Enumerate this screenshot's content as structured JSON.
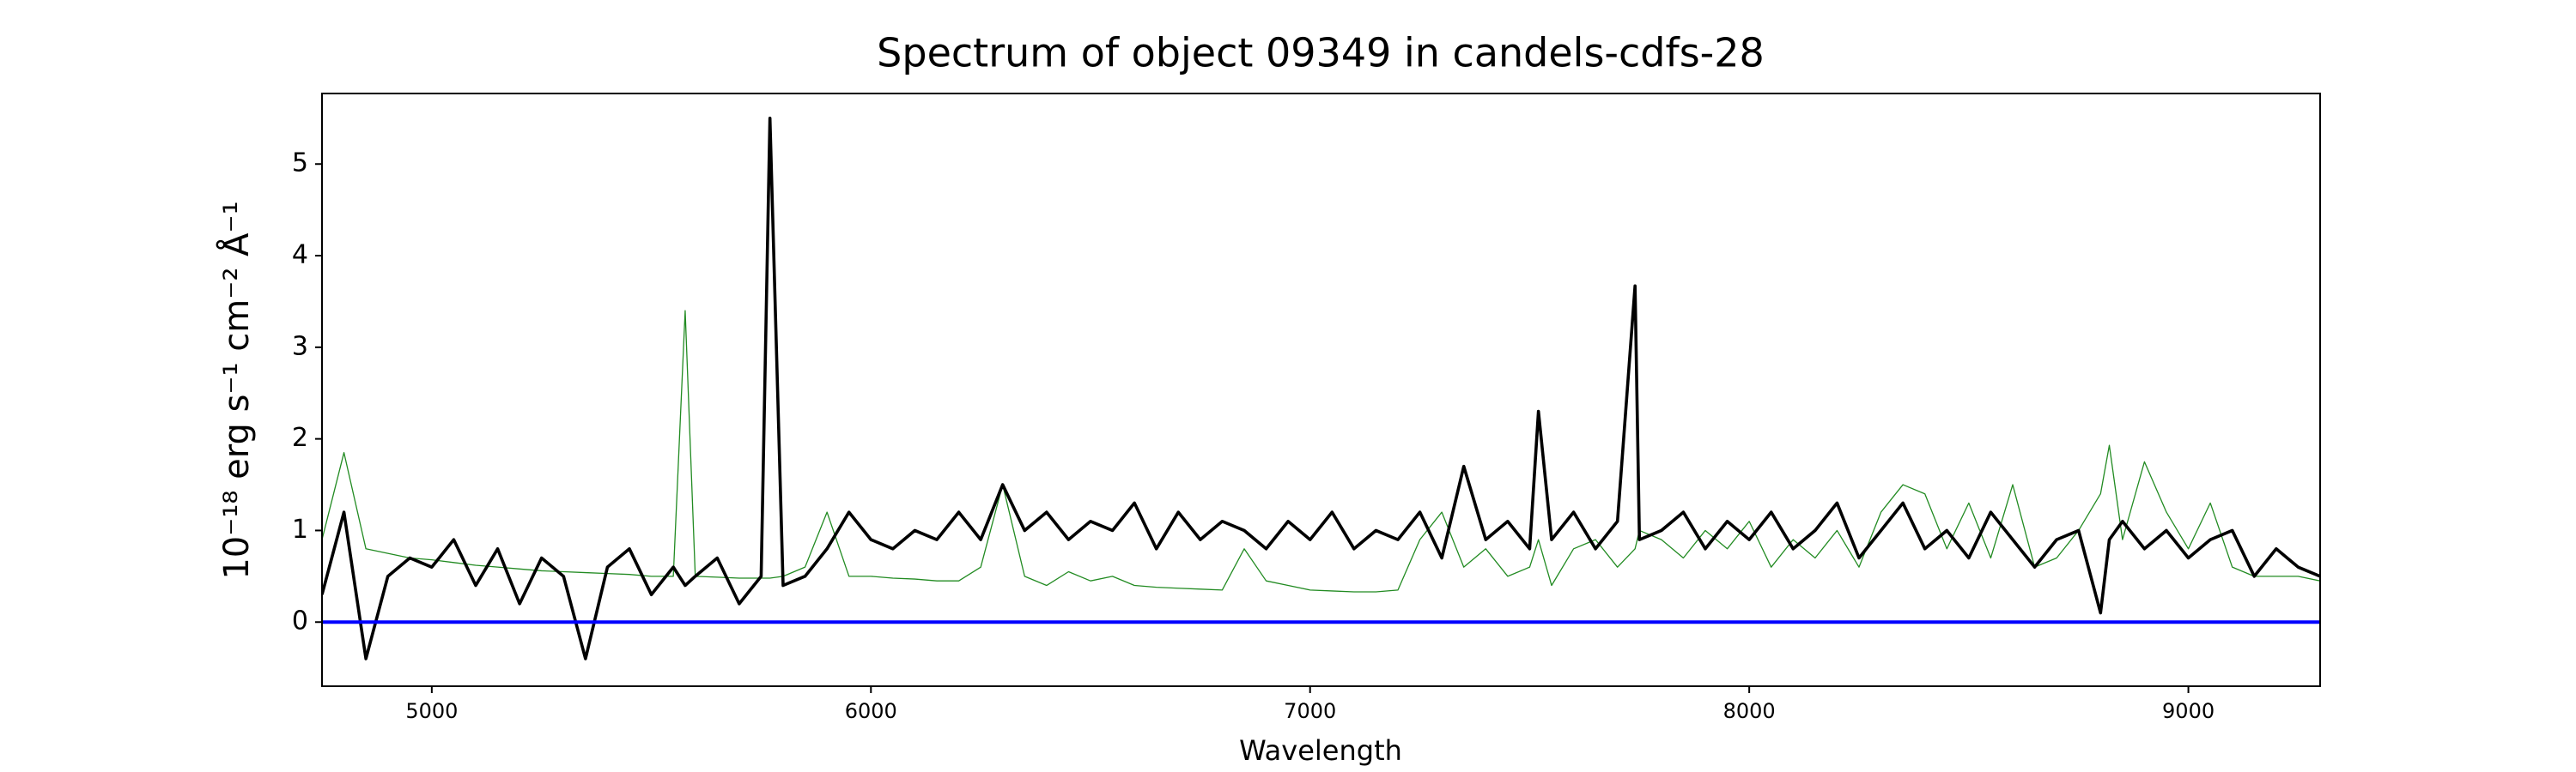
{
  "chart_data": {
    "type": "line",
    "title": "Spectrum of object 09349 in candels-cdfs-28",
    "x_label": "Wavelength",
    "y_label": "10⁻¹⁸ erg s⁻¹ cm⁻² Å⁻¹",
    "x": [
      4750,
      4800,
      4850,
      4900,
      4950,
      5000,
      5050,
      5100,
      5150,
      5200,
      5250,
      5300,
      5350,
      5400,
      5450,
      5500,
      5550,
      5577,
      5600,
      5650,
      5700,
      5750,
      5770,
      5800,
      5850,
      5900,
      5950,
      6000,
      6050,
      6100,
      6150,
      6200,
      6250,
      6300,
      6350,
      6400,
      6450,
      6500,
      6550,
      6600,
      6650,
      6700,
      6750,
      6800,
      6850,
      6900,
      6950,
      7000,
      7050,
      7100,
      7150,
      7200,
      7250,
      7300,
      7350,
      7400,
      7450,
      7500,
      7520,
      7550,
      7600,
      7650,
      7700,
      7740,
      7750,
      7800,
      7850,
      7900,
      7950,
      8000,
      8050,
      8100,
      8150,
      8200,
      8250,
      8300,
      8350,
      8400,
      8450,
      8500,
      8550,
      8600,
      8650,
      8700,
      8750,
      8800,
      8820,
      8850,
      8900,
      8950,
      9000,
      9050,
      9100,
      9150,
      9200,
      9250,
      9300
    ],
    "series": [
      {
        "color": "#228b22",
        "width": 1.3,
        "values": [
          0.9,
          1.85,
          0.8,
          0.75,
          0.7,
          0.68,
          0.65,
          0.62,
          0.6,
          0.58,
          0.56,
          0.55,
          0.54,
          0.53,
          0.52,
          0.5,
          0.5,
          3.4,
          0.5,
          0.49,
          0.48,
          0.48,
          0.48,
          0.5,
          0.6,
          1.2,
          0.5,
          0.5,
          0.48,
          0.47,
          0.45,
          0.45,
          0.6,
          1.5,
          0.5,
          0.4,
          0.55,
          0.45,
          0.5,
          0.4,
          0.38,
          0.37,
          0.36,
          0.35,
          0.8,
          0.45,
          0.4,
          0.35,
          0.34,
          0.33,
          0.33,
          0.35,
          0.9,
          1.2,
          0.6,
          0.8,
          0.5,
          0.6,
          0.9,
          0.4,
          0.8,
          0.9,
          0.6,
          0.8,
          1.0,
          0.9,
          0.7,
          1.0,
          0.8,
          1.1,
          0.6,
          0.9,
          0.7,
          1.0,
          0.6,
          1.2,
          1.5,
          1.4,
          0.8,
          1.3,
          0.7,
          1.5,
          0.6,
          0.7,
          1.0,
          1.4,
          1.93,
          0.9,
          1.75,
          1.2,
          0.8,
          1.3,
          0.6,
          0.5,
          0.5,
          0.5,
          0.45
        ]
      },
      {
        "color": "#000000",
        "width": 3.6,
        "values": [
          0.3,
          1.2,
          -0.4,
          0.5,
          0.7,
          0.6,
          0.9,
          0.4,
          0.8,
          0.2,
          0.7,
          0.5,
          -0.4,
          0.6,
          0.8,
          0.3,
          0.6,
          0.4,
          0.5,
          0.7,
          0.2,
          0.5,
          5.5,
          0.4,
          0.5,
          0.8,
          1.2,
          0.9,
          0.8,
          1.0,
          0.9,
          1.2,
          0.9,
          1.5,
          1.0,
          1.2,
          0.9,
          1.1,
          1.0,
          1.3,
          0.8,
          1.2,
          0.9,
          1.1,
          1.0,
          0.8,
          1.1,
          0.9,
          1.2,
          0.8,
          1.0,
          0.9,
          1.2,
          0.7,
          1.7,
          0.9,
          1.1,
          0.8,
          2.3,
          0.9,
          1.2,
          0.8,
          1.1,
          3.67,
          0.9,
          1.0,
          1.2,
          0.8,
          1.1,
          0.9,
          1.2,
          0.8,
          1.0,
          1.3,
          0.7,
          1.0,
          1.3,
          0.8,
          1.0,
          0.7,
          1.2,
          0.9,
          0.6,
          0.9,
          1.0,
          0.1,
          0.9,
          1.1,
          0.8,
          1.0,
          0.7,
          0.9,
          1.0,
          0.5,
          0.8,
          0.6,
          0.5
        ]
      }
    ],
    "reference_line": {
      "value": 0,
      "color": "#0000ff"
    },
    "xlim": [
      4750,
      9300
    ],
    "xticks": [
      5000,
      6000,
      7000,
      8000,
      9000
    ],
    "ylim": [
      -0.7,
      5.77
    ],
    "yticks": [
      0,
      1,
      2,
      3,
      4,
      5
    ],
    "grid": false
  }
}
